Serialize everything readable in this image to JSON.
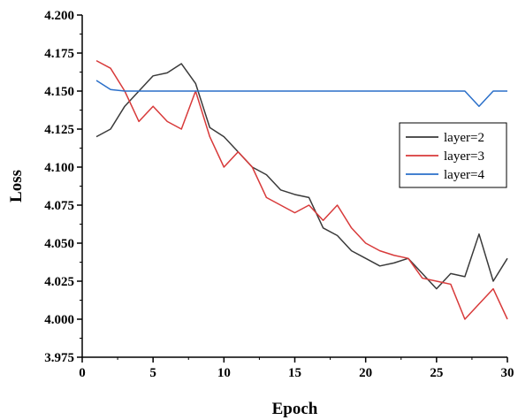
{
  "chart_data": {
    "type": "line",
    "xlabel": "Epoch",
    "ylabel": "Loss",
    "xlim": [
      0,
      30
    ],
    "ylim": [
      3.975,
      4.2
    ],
    "xticks": [
      0,
      5,
      10,
      15,
      20,
      25,
      30
    ],
    "yticks": [
      3.975,
      4.0,
      4.025,
      4.05,
      4.075,
      4.1,
      4.125,
      4.15,
      4.175,
      4.2
    ],
    "grid": false,
    "legend_position": "right",
    "x": [
      1,
      2,
      3,
      4,
      5,
      6,
      7,
      8,
      9,
      10,
      11,
      12,
      13,
      14,
      15,
      16,
      17,
      18,
      19,
      20,
      21,
      22,
      23,
      24,
      25,
      26,
      27,
      28,
      29,
      30
    ],
    "series": [
      {
        "name": "layer=2",
        "color": "#3a3a3a",
        "values": [
          4.12,
          4.125,
          4.14,
          4.15,
          4.16,
          4.162,
          4.168,
          4.155,
          4.126,
          4.12,
          4.11,
          4.1,
          4.095,
          4.085,
          4.082,
          4.08,
          4.06,
          4.055,
          4.045,
          4.04,
          4.035,
          4.037,
          4.04,
          4.03,
          4.02,
          4.03,
          4.028,
          4.056,
          4.025,
          4.04
        ]
      },
      {
        "name": "layer=3",
        "color": "#d83a3a",
        "values": [
          4.17,
          4.165,
          4.15,
          4.13,
          4.14,
          4.13,
          4.125,
          4.15,
          4.12,
          4.1,
          4.11,
          4.1,
          4.08,
          4.075,
          4.07,
          4.075,
          4.065,
          4.075,
          4.06,
          4.05,
          4.045,
          4.042,
          4.04,
          4.027,
          4.025,
          4.023,
          4.0,
          4.01,
          4.02,
          4.0
        ]
      },
      {
        "name": "layer=4",
        "color": "#2a6fc9",
        "values": [
          4.157,
          4.151,
          4.15,
          4.15,
          4.15,
          4.15,
          4.15,
          4.15,
          4.15,
          4.15,
          4.15,
          4.15,
          4.15,
          4.15,
          4.15,
          4.15,
          4.15,
          4.15,
          4.15,
          4.15,
          4.15,
          4.15,
          4.15,
          4.15,
          4.15,
          4.15,
          4.15,
          4.14,
          4.15,
          4.15
        ]
      }
    ]
  }
}
